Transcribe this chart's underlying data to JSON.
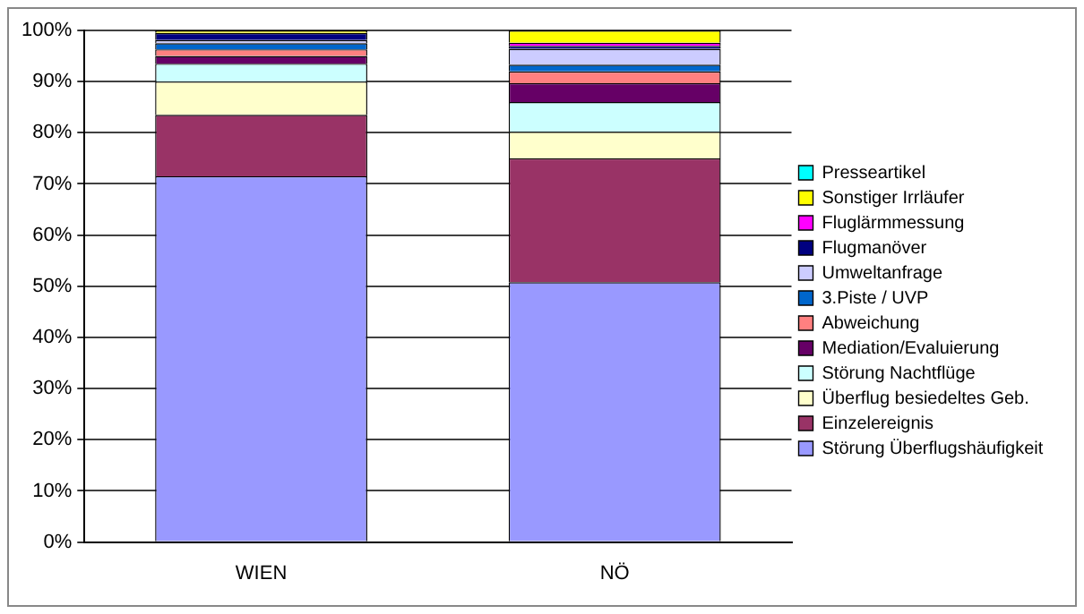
{
  "chart_data": {
    "type": "bar",
    "stacked": true,
    "categories": [
      "WIEN",
      "NÖ"
    ],
    "series": [
      {
        "name": "Störung Überflugshäufigkeit",
        "color": "#9999ff",
        "values": [
          71.5,
          50.8
        ]
      },
      {
        "name": "Einzelereignis",
        "color": "#993366",
        "values": [
          12,
          24.2
        ]
      },
      {
        "name": "Überflug besiedeltes Geb.",
        "color": "#ffffcc",
        "values": [
          6.5,
          5.2
        ]
      },
      {
        "name": "Störung Nachtflüge",
        "color": "#ccffff",
        "values": [
          3.5,
          5.8
        ]
      },
      {
        "name": "Mediation/Evaluierung",
        "color": "#660066",
        "values": [
          1.5,
          3.7
        ]
      },
      {
        "name": "Abweichung",
        "color": "#ff8080",
        "values": [
          1.3,
          2.3
        ]
      },
      {
        "name": "3.Piste / UVP",
        "color": "#0066cc",
        "values": [
          1.2,
          1.3
        ]
      },
      {
        "name": "Umweltanfrage",
        "color": "#ccccff",
        "values": [
          0.6,
          3.1
        ]
      },
      {
        "name": "Flugmanöver",
        "color": "#000080",
        "values": [
          1.4,
          0.6
        ]
      },
      {
        "name": "Fluglärmmessung",
        "color": "#ff00ff",
        "values": [
          0,
          0.6
        ]
      },
      {
        "name": "Sonstiger Irrläufer",
        "color": "#ffff00",
        "values": [
          0.5,
          2.4
        ]
      },
      {
        "name": "Presseartikel",
        "color": "#00ffff",
        "values": [
          0,
          0
        ]
      }
    ],
    "ylim": [
      0,
      100
    ],
    "yticks": [
      {
        "value": 0,
        "label": "0%"
      },
      {
        "value": 10,
        "label": "10%"
      },
      {
        "value": 20,
        "label": "20%"
      },
      {
        "value": 30,
        "label": "30%"
      },
      {
        "value": 40,
        "label": "40%"
      },
      {
        "value": 50,
        "label": "50%"
      },
      {
        "value": 60,
        "label": "60%"
      },
      {
        "value": 70,
        "label": "70%"
      },
      {
        "value": 80,
        "label": "80%"
      },
      {
        "value": 90,
        "label": "90%"
      },
      {
        "value": 100,
        "label": "100%"
      }
    ],
    "grid": "y",
    "legend": "right"
  }
}
